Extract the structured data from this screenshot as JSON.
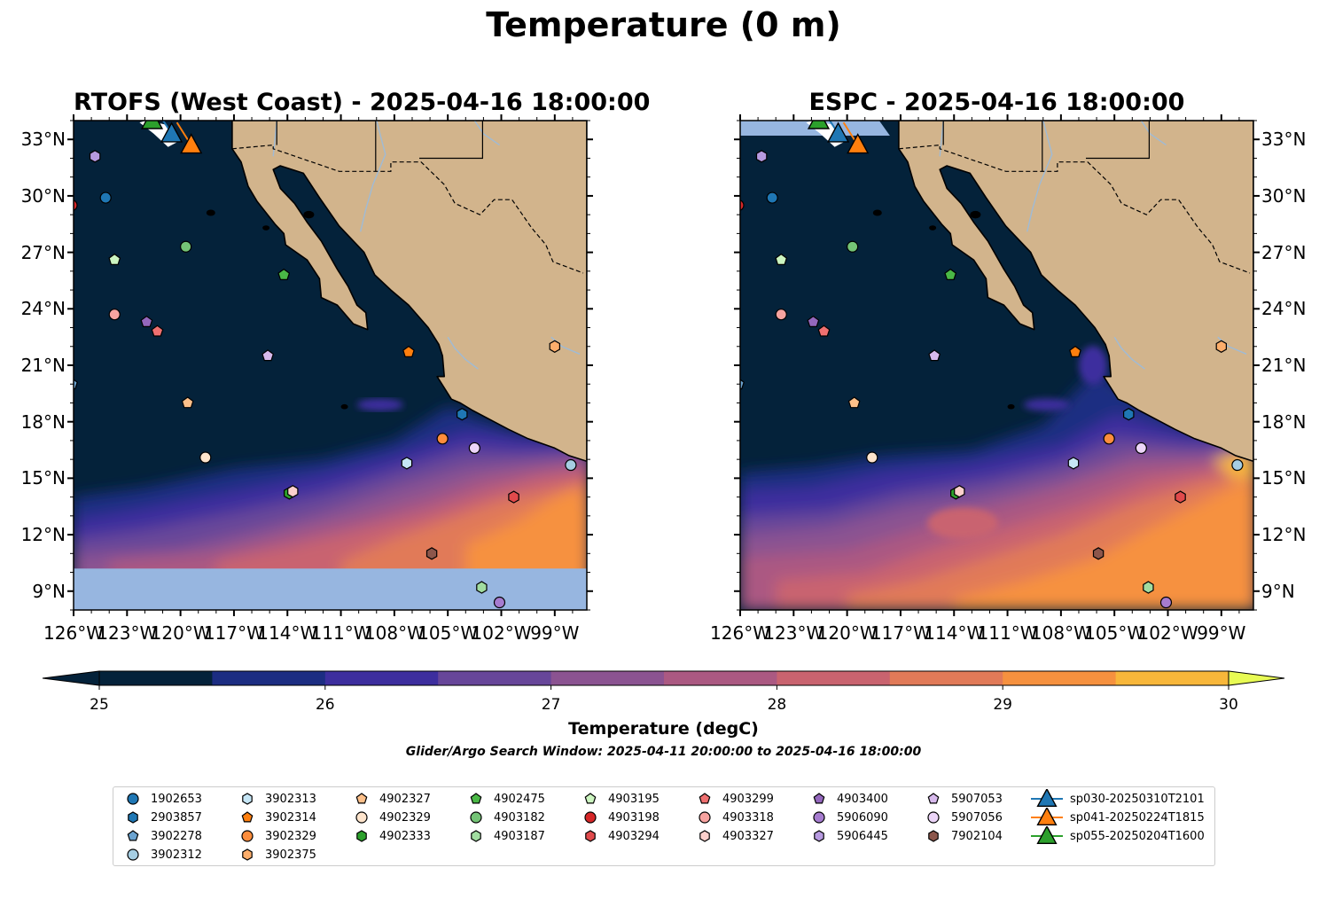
{
  "figure": {
    "title": "Temperature (0 m)",
    "search_window": "Glider/Argo Search Window: 2025-04-11 20:00:00 to 2025-04-16 18:00:00"
  },
  "panels": [
    {
      "title": "RTOFS (West Coast) - 2025-04-16 18:00:00",
      "model": "RTOFS",
      "southern_nodata_below_lat": 10.2
    },
    {
      "title": "ESPC - 2025-04-16 18:00:00",
      "model": "ESPC",
      "southern_nodata_below_lat": null
    }
  ],
  "map": {
    "lon_range": [
      -126,
      -97.2
    ],
    "lat_range": [
      8,
      34
    ],
    "lon_ticks": [
      "126°W",
      "123°W",
      "120°W",
      "117°W",
      "114°W",
      "111°W",
      "108°W",
      "105°W",
      "102°W",
      "99°W"
    ],
    "lat_ticks": [
      "33°N",
      "30°N",
      "27°N",
      "24°N",
      "21°N",
      "18°N",
      "15°N",
      "12°N",
      "9°N"
    ],
    "colors": {
      "land": "#d2b48c",
      "nodata": "#97b6e0",
      "coast": "#000000",
      "river": "#9fbbd6"
    }
  },
  "colorbar": {
    "label": "Temperature (degC)",
    "ticks": [
      "25",
      "26",
      "27",
      "28",
      "29",
      "30"
    ],
    "min": 25,
    "max": 30,
    "step": 0.5,
    "colors": [
      "#04223a",
      "#1c2d82",
      "#3d2e9e",
      "#674699",
      "#8b5391",
      "#ab5982",
      "#c9636f",
      "#e17a58",
      "#f6913f",
      "#f8b73a"
    ],
    "under_color": "#04223a",
    "over_color": "#e8fb54"
  },
  "floats": [
    {
      "id": "1902653",
      "marker": "circle",
      "color": "#1f77b4",
      "lon": -124.2,
      "lat": 29.9
    },
    {
      "id": "2903857",
      "marker": "hexagon",
      "color": "#1f77b4",
      "lon": -104.2,
      "lat": 18.4
    },
    {
      "id": "3902278",
      "marker": "pentagon",
      "color": "#6ba3d0",
      "lon": -126.1,
      "lat": 20.0
    },
    {
      "id": "3902312",
      "marker": "circle",
      "color": "#a6cee3",
      "lon": -98.1,
      "lat": 15.7
    },
    {
      "id": "3902313",
      "marker": "hexagon",
      "color": "#c6e6f6",
      "lon": -107.3,
      "lat": 15.8
    },
    {
      "id": "3902314",
      "marker": "pentagon",
      "color": "#ff7f0e",
      "lon": -107.2,
      "lat": 21.7
    },
    {
      "id": "3902329",
      "marker": "circle",
      "color": "#fd8d3c",
      "lon": -105.3,
      "lat": 17.1
    },
    {
      "id": "3902375",
      "marker": "hexagon",
      "color": "#fdae6b",
      "lon": -99.0,
      "lat": 22.0
    },
    {
      "id": "4902327",
      "marker": "pentagon",
      "color": "#fdc08a",
      "lon": -119.6,
      "lat": 19.0
    },
    {
      "id": "4902329",
      "marker": "circle",
      "color": "#fee4cc",
      "lon": -118.6,
      "lat": 16.1
    },
    {
      "id": "4902333",
      "marker": "hexagon",
      "color": "#2ca02c",
      "lon": -113.9,
      "lat": 14.2
    },
    {
      "id": "4902475",
      "marker": "pentagon",
      "color": "#4ab846",
      "lon": -114.2,
      "lat": 25.8
    },
    {
      "id": "4903182",
      "marker": "circle",
      "color": "#74c476",
      "lon": -119.7,
      "lat": 27.3
    },
    {
      "id": "4903187",
      "marker": "hexagon",
      "color": "#a1dca0",
      "lon": -103.1,
      "lat": 9.2
    },
    {
      "id": "4903195",
      "marker": "pentagon",
      "color": "#ccf5c0",
      "lon": -123.7,
      "lat": 26.6
    },
    {
      "id": "4903198",
      "marker": "circle",
      "color": "#d62728",
      "lon": -126.1,
      "lat": 29.5
    },
    {
      "id": "4903294",
      "marker": "hexagon",
      "color": "#e04a4c",
      "lon": -101.3,
      "lat": 14.0
    },
    {
      "id": "4903299",
      "marker": "pentagon",
      "color": "#ef7070",
      "lon": -121.3,
      "lat": 22.8
    },
    {
      "id": "4903318",
      "marker": "circle",
      "color": "#f7a3a0",
      "lon": -123.7,
      "lat": 23.7
    },
    {
      "id": "4903327",
      "marker": "hexagon",
      "color": "#fcd0cc",
      "lon": -113.7,
      "lat": 14.3
    },
    {
      "id": "4903400",
      "marker": "pentagon",
      "color": "#9467bd",
      "lon": -121.9,
      "lat": 23.3
    },
    {
      "id": "5906090",
      "marker": "circle",
      "color": "#a67ccf",
      "lon": -102.1,
      "lat": 8.4
    },
    {
      "id": "5906445",
      "marker": "hexagon",
      "color": "#b79ae0",
      "lon": -124.8,
      "lat": 32.1
    },
    {
      "id": "5907053",
      "marker": "pentagon",
      "color": "#d7b9ec",
      "lon": -115.1,
      "lat": 21.5
    },
    {
      "id": "5907056",
      "marker": "circle",
      "color": "#ecd5f8",
      "lon": -103.5,
      "lat": 16.6
    },
    {
      "id": "7902104",
      "marker": "hexagon",
      "color": "#8c564b",
      "lon": -105.9,
      "lat": 11.0
    }
  ],
  "gliders": [
    {
      "id": "sp030-20250310T2101",
      "color": "#1f77b4",
      "lon": -120.5,
      "lat": 33.3,
      "track": [
        [
          -121.3,
          34.4
        ],
        [
          -120.9,
          33.9
        ],
        [
          -120.5,
          33.3
        ]
      ]
    },
    {
      "id": "sp041-20250224T1815",
      "color": "#ff7f0e",
      "lon": -119.4,
      "lat": 32.7,
      "track": [
        [
          -120.2,
          33.9
        ],
        [
          -119.8,
          33.3
        ],
        [
          -119.4,
          32.7
        ]
      ]
    },
    {
      "id": "sp055-20250204T1600",
      "color": "#2ca02c",
      "lon": -121.6,
      "lat": 34.0,
      "track": [
        [
          -122.2,
          34.4
        ],
        [
          -121.9,
          34.2
        ],
        [
          -121.6,
          34.0
        ]
      ]
    }
  ]
}
